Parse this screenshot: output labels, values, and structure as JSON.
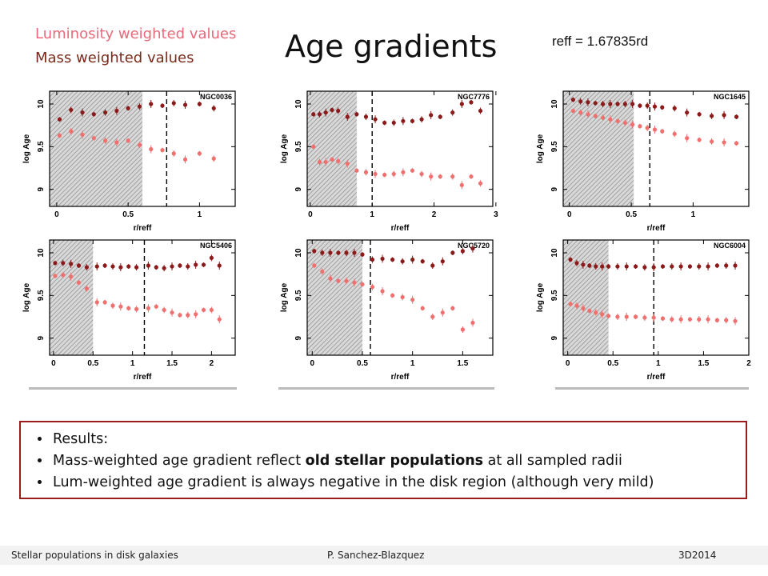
{
  "legend": {
    "luminosity": "Luminosity weighted values",
    "mass": "Mass weighted values",
    "lum_color": "#f07070",
    "mass_color": "#8b1a1a"
  },
  "title": "Age gradients",
  "reff_text": "reff = 1.67835rd",
  "results": {
    "items": [
      {
        "text": "Results:"
      },
      {
        "pre": "Mass-weighted age gradient reflect ",
        "bold": "old stellar populations",
        "post": " at all sampled radii"
      },
      {
        "text": "Lum-weighted age gradient is always negative in the disk region (although very mild)"
      }
    ]
  },
  "footer": {
    "left": "Stellar populations in disk galaxies",
    "center": "P. Sanchez-Blazquez",
    "right": "3D2014"
  },
  "chart_data": [
    {
      "type": "scatter",
      "title": "NGC0036",
      "xlabel": "r/reff",
      "ylabel": "log Age",
      "xlim": [
        -0.05,
        1.25
      ],
      "ylim": [
        8.8,
        10.15
      ],
      "xticks": [
        0,
        0.5,
        1
      ],
      "yticks": [
        9,
        9.5,
        10
      ],
      "shaded_range": [
        -0.05,
        0.6
      ],
      "dashed_x": 0.77,
      "series": [
        {
          "name": "Mass weighted values",
          "x": [
            0.02,
            0.1,
            0.18,
            0.26,
            0.34,
            0.42,
            0.5,
            0.58,
            0.66,
            0.74,
            0.82,
            0.9,
            1.0,
            1.1
          ],
          "y": [
            9.82,
            9.93,
            9.9,
            9.88,
            9.9,
            9.92,
            9.95,
            9.97,
            10.0,
            9.98,
            10.01,
            9.99,
            10.0,
            9.95
          ]
        },
        {
          "name": "Luminosity weighted values",
          "x": [
            0.02,
            0.1,
            0.18,
            0.26,
            0.34,
            0.42,
            0.5,
            0.58,
            0.66,
            0.74,
            0.82,
            0.9,
            1.0,
            1.1
          ],
          "y": [
            9.63,
            9.68,
            9.64,
            9.6,
            9.57,
            9.55,
            9.57,
            9.52,
            9.47,
            9.46,
            9.42,
            9.35,
            9.42,
            9.36
          ]
        }
      ]
    },
    {
      "type": "scatter",
      "title": "NGC7776",
      "xlabel": "r/reff",
      "ylabel": "log Age",
      "xlim": [
        -0.05,
        2.95
      ],
      "ylim": [
        8.8,
        10.15
      ],
      "xticks": [
        0,
        1,
        2,
        3
      ],
      "yticks": [
        9,
        9.5,
        10
      ],
      "shaded_range": [
        -0.05,
        0.75
      ],
      "dashed_x": 1.0,
      "series": [
        {
          "name": "Mass weighted values",
          "x": [
            0.05,
            0.15,
            0.25,
            0.35,
            0.45,
            0.6,
            0.75,
            0.9,
            1.05,
            1.2,
            1.35,
            1.5,
            1.65,
            1.8,
            1.95,
            2.1,
            2.3,
            2.45,
            2.6,
            2.75
          ],
          "y": [
            9.88,
            9.88,
            9.9,
            9.93,
            9.92,
            9.85,
            9.88,
            9.85,
            9.82,
            9.78,
            9.78,
            9.8,
            9.8,
            9.82,
            9.87,
            9.85,
            9.9,
            10.0,
            10.02,
            9.92
          ]
        },
        {
          "name": "Luminosity weighted values",
          "x": [
            0.05,
            0.15,
            0.25,
            0.35,
            0.45,
            0.6,
            0.75,
            0.9,
            1.05,
            1.2,
            1.35,
            1.5,
            1.65,
            1.8,
            1.95,
            2.1,
            2.3,
            2.45,
            2.6,
            2.75
          ],
          "y": [
            9.5,
            9.32,
            9.32,
            9.35,
            9.33,
            9.3,
            9.22,
            9.2,
            9.18,
            9.17,
            9.18,
            9.2,
            9.22,
            9.18,
            9.15,
            9.15,
            9.15,
            9.05,
            9.15,
            9.07
          ]
        }
      ]
    },
    {
      "type": "scatter",
      "title": "NGC1645",
      "xlabel": "r/reff",
      "ylabel": "log Age",
      "xlim": [
        -0.05,
        1.45
      ],
      "ylim": [
        8.8,
        10.15
      ],
      "xticks": [
        0,
        0.5,
        1
      ],
      "yticks": [
        9,
        9.5,
        10
      ],
      "shaded_range": [
        -0.05,
        0.52
      ],
      "dashed_x": 0.65,
      "series": [
        {
          "name": "Mass weighted values",
          "x": [
            0.03,
            0.09,
            0.15,
            0.21,
            0.27,
            0.33,
            0.39,
            0.45,
            0.51,
            0.57,
            0.63,
            0.69,
            0.75,
            0.85,
            0.95,
            1.05,
            1.15,
            1.25,
            1.35
          ],
          "y": [
            10.05,
            10.03,
            10.02,
            10.01,
            10.0,
            10.0,
            10.0,
            10.0,
            10.0,
            9.98,
            9.98,
            9.97,
            9.96,
            9.95,
            9.9,
            9.88,
            9.86,
            9.87,
            9.85
          ]
        },
        {
          "name": "Luminosity weighted values",
          "x": [
            0.03,
            0.09,
            0.15,
            0.21,
            0.27,
            0.33,
            0.39,
            0.45,
            0.51,
            0.57,
            0.63,
            0.69,
            0.75,
            0.85,
            0.95,
            1.05,
            1.15,
            1.25,
            1.35
          ],
          "y": [
            9.92,
            9.9,
            9.88,
            9.86,
            9.84,
            9.82,
            9.8,
            9.78,
            9.76,
            9.74,
            9.72,
            9.7,
            9.68,
            9.65,
            9.6,
            9.58,
            9.56,
            9.55,
            9.54
          ]
        }
      ]
    },
    {
      "type": "scatter",
      "title": "NGC5406",
      "xlabel": "r/reff",
      "ylabel": "log Age",
      "xlim": [
        -0.05,
        2.3
      ],
      "ylim": [
        8.8,
        10.15
      ],
      "xticks": [
        0,
        0.5,
        1,
        1.5,
        2
      ],
      "yticks": [
        9,
        9.5,
        10
      ],
      "shaded_range": [
        -0.05,
        0.5
      ],
      "dashed_x": 1.15,
      "series": [
        {
          "name": "Mass weighted values",
          "x": [
            0.02,
            0.12,
            0.22,
            0.32,
            0.42,
            0.55,
            0.65,
            0.75,
            0.85,
            0.95,
            1.05,
            1.2,
            1.3,
            1.4,
            1.5,
            1.6,
            1.7,
            1.8,
            1.9,
            2.0,
            2.1
          ],
          "y": [
            9.88,
            9.88,
            9.87,
            9.85,
            9.83,
            9.84,
            9.85,
            9.84,
            9.83,
            9.84,
            9.83,
            9.85,
            9.83,
            9.82,
            9.84,
            9.85,
            9.84,
            9.86,
            9.86,
            9.94,
            9.85
          ]
        },
        {
          "name": "Luminosity weighted values",
          "x": [
            0.02,
            0.12,
            0.22,
            0.32,
            0.42,
            0.55,
            0.65,
            0.75,
            0.85,
            0.95,
            1.05,
            1.2,
            1.3,
            1.4,
            1.5,
            1.6,
            1.7,
            1.8,
            1.9,
            2.0,
            2.1
          ],
          "y": [
            9.73,
            9.74,
            9.72,
            9.65,
            9.58,
            9.42,
            9.42,
            9.38,
            9.37,
            9.35,
            9.34,
            9.35,
            9.37,
            9.33,
            9.3,
            9.27,
            9.27,
            9.28,
            9.33,
            9.33,
            9.22
          ]
        }
      ]
    },
    {
      "type": "scatter",
      "title": "NGC5720",
      "xlabel": "r/reff",
      "ylabel": "log Age",
      "xlim": [
        -0.05,
        1.8
      ],
      "ylim": [
        8.8,
        10.15
      ],
      "xticks": [
        0,
        0.5,
        1,
        1.5
      ],
      "yticks": [
        9,
        9.5,
        10
      ],
      "shaded_range": [
        -0.05,
        0.5
      ],
      "dashed_x": 0.58,
      "series": [
        {
          "name": "Mass weighted values",
          "x": [
            0.02,
            0.1,
            0.18,
            0.26,
            0.34,
            0.42,
            0.5,
            0.6,
            0.7,
            0.8,
            0.9,
            1.0,
            1.1,
            1.2,
            1.3,
            1.4,
            1.5,
            1.6
          ],
          "y": [
            10.02,
            10.0,
            10.0,
            10.0,
            10.0,
            10.0,
            9.98,
            9.92,
            9.93,
            9.92,
            9.9,
            9.92,
            9.9,
            9.85,
            9.9,
            10.0,
            10.02,
            10.05
          ]
        },
        {
          "name": "Luminosity weighted values",
          "x": [
            0.02,
            0.1,
            0.18,
            0.26,
            0.34,
            0.42,
            0.5,
            0.6,
            0.7,
            0.8,
            0.9,
            1.0,
            1.1,
            1.2,
            1.3,
            1.4,
            1.5,
            1.6
          ],
          "y": [
            9.85,
            9.78,
            9.7,
            9.67,
            9.67,
            9.65,
            9.63,
            9.6,
            9.55,
            9.5,
            9.48,
            9.45,
            9.35,
            9.25,
            9.3,
            9.35,
            9.1,
            9.18
          ]
        }
      ]
    },
    {
      "type": "scatter",
      "title": "NGC6004",
      "xlabel": "r/reff",
      "ylabel": "log Age",
      "xlim": [
        -0.05,
        2.0
      ],
      "ylim": [
        8.8,
        10.15
      ],
      "xticks": [
        0,
        0.5,
        1,
        1.5,
        2
      ],
      "yticks": [
        9,
        9.5,
        10
      ],
      "shaded_range": [
        -0.05,
        0.45
      ],
      "dashed_x": 0.95,
      "series": [
        {
          "name": "Mass weighted values",
          "x": [
            0.03,
            0.1,
            0.17,
            0.24,
            0.31,
            0.38,
            0.45,
            0.55,
            0.65,
            0.75,
            0.85,
            0.95,
            1.05,
            1.15,
            1.25,
            1.35,
            1.45,
            1.55,
            1.65,
            1.75,
            1.85
          ],
          "y": [
            9.92,
            9.88,
            9.86,
            9.85,
            9.84,
            9.84,
            9.84,
            9.84,
            9.84,
            9.84,
            9.83,
            9.83,
            9.84,
            9.84,
            9.84,
            9.84,
            9.84,
            9.84,
            9.85,
            9.85,
            9.85
          ]
        },
        {
          "name": "Luminosity weighted values",
          "x": [
            0.03,
            0.1,
            0.17,
            0.24,
            0.31,
            0.38,
            0.45,
            0.55,
            0.65,
            0.75,
            0.85,
            0.95,
            1.05,
            1.15,
            1.25,
            1.35,
            1.45,
            1.55,
            1.65,
            1.75,
            1.85
          ],
          "y": [
            9.4,
            9.38,
            9.35,
            9.32,
            9.3,
            9.28,
            9.26,
            9.25,
            9.25,
            9.25,
            9.24,
            9.24,
            9.23,
            9.22,
            9.22,
            9.22,
            9.22,
            9.22,
            9.21,
            9.21,
            9.2
          ]
        }
      ]
    }
  ]
}
